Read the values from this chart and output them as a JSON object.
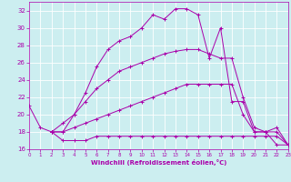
{
  "background_color": "#cceef0",
  "grid_color": "#ffffff",
  "line_color": "#aa00aa",
  "xlabel": "Windchill (Refroidissement éolien,°C)",
  "xlim": [
    0,
    23
  ],
  "ylim": [
    16,
    33
  ],
  "yticks": [
    16,
    18,
    20,
    22,
    24,
    26,
    28,
    30,
    32
  ],
  "xticks": [
    0,
    1,
    2,
    3,
    4,
    5,
    6,
    7,
    8,
    9,
    10,
    11,
    12,
    13,
    14,
    15,
    16,
    17,
    18,
    19,
    20,
    21,
    22,
    23
  ],
  "curve1_x": [
    0,
    1,
    2,
    3,
    4,
    5,
    6,
    7,
    8,
    9,
    10,
    11,
    12,
    13,
    14,
    15,
    16,
    17,
    18,
    19,
    20,
    21,
    22,
    23
  ],
  "curve1_y": [
    21.0,
    18.5,
    18.0,
    19.0,
    20.0,
    22.5,
    25.5,
    27.5,
    28.5,
    29.0,
    30.0,
    31.5,
    31.0,
    32.2,
    32.2,
    31.5,
    26.5,
    30.0,
    21.5,
    21.5,
    18.0,
    18.0,
    16.5,
    16.5
  ],
  "curve2_x": [
    2,
    3,
    4,
    5,
    6,
    7,
    8,
    9,
    10,
    11,
    12,
    13,
    14,
    15,
    16,
    17,
    18,
    19,
    20,
    21,
    22,
    23
  ],
  "curve2_y": [
    18.0,
    18.0,
    20.0,
    21.5,
    23.0,
    24.0,
    25.0,
    25.5,
    26.0,
    26.5,
    27.0,
    27.3,
    27.5,
    27.5,
    27.0,
    26.5,
    26.5,
    22.0,
    18.5,
    18.0,
    18.5,
    16.5
  ],
  "curve3_x": [
    2,
    3,
    4,
    5,
    6,
    7,
    8,
    9,
    10,
    11,
    12,
    13,
    14,
    15,
    16,
    17,
    18,
    19,
    20,
    21,
    22,
    23
  ],
  "curve3_y": [
    18.0,
    18.0,
    18.5,
    19.0,
    19.5,
    20.0,
    20.5,
    21.0,
    21.5,
    22.0,
    22.5,
    23.0,
    23.5,
    23.5,
    23.5,
    23.5,
    23.5,
    20.0,
    18.0,
    18.0,
    18.0,
    16.5
  ],
  "curve4_x": [
    2,
    3,
    4,
    5,
    6,
    7,
    8,
    9,
    10,
    11,
    12,
    13,
    14,
    15,
    16,
    17,
    18,
    19,
    20,
    21,
    22,
    23
  ],
  "curve4_y": [
    18.0,
    17.0,
    17.0,
    17.0,
    17.5,
    17.5,
    17.5,
    17.5,
    17.5,
    17.5,
    17.5,
    17.5,
    17.5,
    17.5,
    17.5,
    17.5,
    17.5,
    17.5,
    17.5,
    17.5,
    17.5,
    16.5
  ]
}
